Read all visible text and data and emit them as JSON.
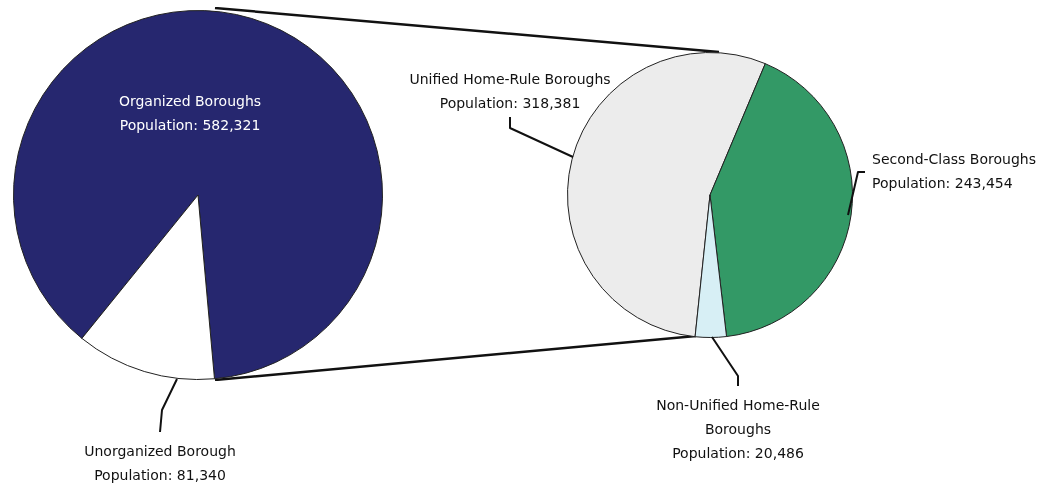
{
  "chart_data": [
    {
      "type": "pie",
      "categories": [
        "Organized Boroughs",
        "Unorganized Borough"
      ],
      "values": [
        582321,
        81340
      ],
      "colors": [
        "#26276f",
        "#ffffff"
      ],
      "value_labels": [
        "Population: 582,321",
        "Population: 81,340"
      ]
    },
    {
      "type": "pie",
      "categories": [
        "Unified Home-Rule Boroughs",
        "Second-Class Boroughs",
        "Non-Unified Home-Rule Boroughs"
      ],
      "values": [
        318381,
        243454,
        20486
      ],
      "colors": [
        "#ececec",
        "#339966",
        "#d7eff5"
      ],
      "value_labels": [
        "Population: 318,381",
        "Population: 243,454",
        "Population: 20,486"
      ]
    }
  ]
}
